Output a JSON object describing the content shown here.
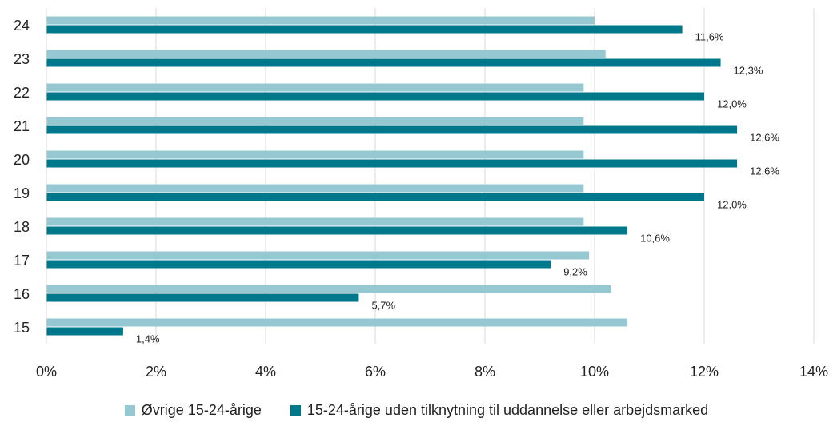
{
  "chart_data": {
    "type": "bar",
    "orientation": "horizontal",
    "categories": [
      "15",
      "16",
      "17",
      "18",
      "19",
      "20",
      "21",
      "22",
      "23",
      "24"
    ],
    "series": [
      {
        "name": "Øvrige 15-24-årige",
        "color": "#96c8d2",
        "values": [
          10.6,
          10.3,
          9.9,
          9.8,
          9.8,
          9.8,
          9.8,
          9.8,
          10.2,
          10.0
        ],
        "labeled": false
      },
      {
        "name": "15-24-årige uden tilknytning til uddannelse eller arbejdsmarked",
        "color": "#00788c",
        "values": [
          1.4,
          5.7,
          9.2,
          10.6,
          12.0,
          12.6,
          12.6,
          12.0,
          12.3,
          11.6
        ],
        "labels": [
          "1,4%",
          "5,7%",
          "9,2%",
          "10,6%",
          "12,0%",
          "12,6%",
          "12,6%",
          "12,0%",
          "12,3%",
          "11,6%"
        ],
        "labeled": true
      }
    ],
    "xaxis": {
      "min": 0,
      "max": 14,
      "ticks": [
        0,
        2,
        4,
        6,
        8,
        10,
        12,
        14
      ],
      "tick_labels": [
        "0%",
        "2%",
        "4%",
        "6%",
        "8%",
        "10%",
        "12%",
        "14%"
      ]
    },
    "xlabel": "",
    "ylabel": "",
    "grid": "vertical",
    "legend_position": "bottom"
  }
}
